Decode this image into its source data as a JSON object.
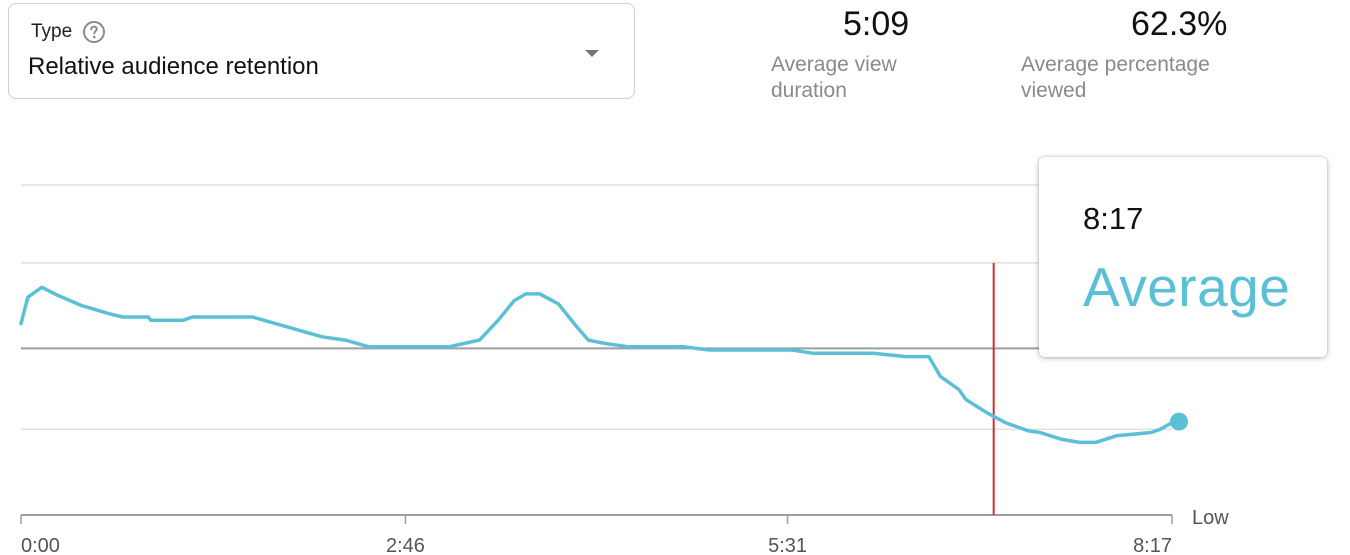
{
  "type_select": {
    "label": "Type",
    "value": "Relative audience retention",
    "help_icon": "help-circle-icon",
    "arrow_icon": "dropdown-arrow-icon"
  },
  "stats": {
    "average_view_duration": {
      "value": "5:09",
      "label_line1": "Average view",
      "label_line2": "duration"
    },
    "average_percentage_viewed": {
      "value": "62.3%",
      "label_line1": "Average percentage",
      "label_line2": "viewed"
    }
  },
  "tooltip": {
    "time": "8:17",
    "value": "Average"
  },
  "colors": {
    "series": "#5bc0d6",
    "marker_line": "#d32f2f",
    "average_line": "#9e9e9e",
    "grid": "#e0e0e0",
    "axis": "#9e9e9e"
  },
  "chart_data": {
    "type": "line",
    "x_axis": {
      "unit": "seconds",
      "min": 0,
      "max": 497,
      "ticks": [
        {
          "value": 0,
          "label": "0:00"
        },
        {
          "value": 166,
          "label": "2:46"
        },
        {
          "value": 331,
          "label": "5:31"
        },
        {
          "value": 497,
          "label": "8:17"
        }
      ]
    },
    "y_axis": {
      "level_labels": [
        "Low"
      ],
      "average_level": "Average"
    },
    "grid": true,
    "marker_time_seconds": 420,
    "series": [
      {
        "points": [
          [
            0,
            0.58
          ],
          [
            3,
            0.66
          ],
          [
            9,
            0.69
          ],
          [
            16,
            0.665
          ],
          [
            26,
            0.635
          ],
          [
            38,
            0.61
          ],
          [
            44,
            0.6
          ],
          [
            55,
            0.6
          ],
          [
            56,
            0.59
          ],
          [
            70,
            0.59
          ],
          [
            74,
            0.6
          ],
          [
            100,
            0.6
          ],
          [
            115,
            0.57
          ],
          [
            130,
            0.54
          ],
          [
            140,
            0.53
          ],
          [
            150,
            0.51
          ],
          [
            170,
            0.51
          ],
          [
            185,
            0.51
          ],
          [
            198,
            0.53
          ],
          [
            206,
            0.59
          ],
          [
            213,
            0.65
          ],
          [
            218,
            0.67
          ],
          [
            224,
            0.67
          ],
          [
            232,
            0.64
          ],
          [
            240,
            0.57
          ],
          [
            245,
            0.53
          ],
          [
            252,
            0.52
          ],
          [
            262,
            0.51
          ],
          [
            275,
            0.51
          ],
          [
            286,
            0.51
          ],
          [
            297,
            0.5
          ],
          [
            310,
            0.5
          ],
          [
            320,
            0.5
          ],
          [
            333,
            0.5
          ],
          [
            342,
            0.49
          ],
          [
            355,
            0.49
          ],
          [
            368,
            0.49
          ],
          [
            382,
            0.48
          ],
          [
            392,
            0.48
          ],
          [
            397,
            0.42
          ],
          [
            405,
            0.38
          ],
          [
            408,
            0.35
          ],
          [
            417,
            0.31
          ],
          [
            425,
            0.28
          ],
          [
            435,
            0.255
          ],
          [
            440,
            0.25
          ],
          [
            449,
            0.23
          ],
          [
            457,
            0.22
          ],
          [
            464,
            0.22
          ],
          [
            473,
            0.24
          ],
          [
            488,
            0.25
          ],
          [
            492,
            0.26
          ],
          [
            497,
            0.28
          ]
        ]
      }
    ]
  }
}
